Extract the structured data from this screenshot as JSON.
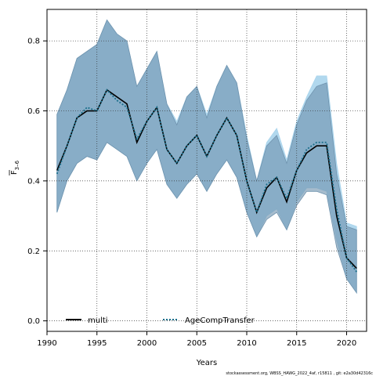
{
  "chart_data": {
    "type": "area",
    "xlabel": "Years",
    "ylabel_main": "F",
    "ylabel_sub": "3–6",
    "xlim": [
      1990,
      2022
    ],
    "ylim": [
      -0.03,
      0.89
    ],
    "xticks": [
      1990,
      1995,
      2000,
      2005,
      2010,
      2015,
      2020
    ],
    "yticks": [
      0.0,
      0.2,
      0.4,
      0.6,
      0.8
    ],
    "ytick_labels": [
      "0.0",
      "0.2",
      "0.4",
      "0.6",
      "0.8"
    ],
    "grid": true,
    "legend_placement": "bottom-left",
    "x": [
      1991,
      1992,
      1993,
      1994,
      1995,
      1996,
      1997,
      1998,
      1999,
      2000,
      2001,
      2002,
      2003,
      2004,
      2005,
      2006,
      2007,
      2008,
      2009,
      2010,
      2011,
      2012,
      2013,
      2014,
      2015,
      2016,
      2017,
      2018,
      2019,
      2020,
      2021
    ],
    "series": [
      {
        "name": "multi",
        "line_color": "#000000",
        "line_style": "solid",
        "band_color": "#6f93ae",
        "values": [
          0.43,
          0.5,
          0.58,
          0.6,
          0.6,
          0.66,
          0.64,
          0.62,
          0.51,
          0.57,
          0.61,
          0.49,
          0.45,
          0.5,
          0.53,
          0.47,
          0.53,
          0.58,
          0.53,
          0.4,
          0.31,
          0.38,
          0.41,
          0.34,
          0.43,
          0.48,
          0.5,
          0.5,
          0.3,
          0.18,
          0.15
        ],
        "lower": [
          0.31,
          0.4,
          0.45,
          0.47,
          0.46,
          0.51,
          0.49,
          0.47,
          0.4,
          0.45,
          0.49,
          0.39,
          0.35,
          0.39,
          0.42,
          0.37,
          0.42,
          0.46,
          0.41,
          0.31,
          0.24,
          0.29,
          0.31,
          0.26,
          0.33,
          0.37,
          0.37,
          0.36,
          0.21,
          0.12,
          0.08
        ],
        "upper": [
          0.59,
          0.66,
          0.75,
          0.77,
          0.79,
          0.86,
          0.82,
          0.8,
          0.67,
          0.72,
          0.77,
          0.62,
          0.56,
          0.64,
          0.67,
          0.58,
          0.67,
          0.73,
          0.68,
          0.52,
          0.4,
          0.5,
          0.53,
          0.45,
          0.56,
          0.63,
          0.67,
          0.68,
          0.42,
          0.27,
          0.26
        ]
      },
      {
        "name": "AgeCompTransfer",
        "line_color": "#1a6e8a",
        "line_style": "dotted",
        "band_color": "#a9d4ec",
        "values": [
          0.42,
          0.5,
          0.58,
          0.61,
          0.6,
          0.66,
          0.63,
          0.61,
          0.52,
          0.57,
          0.61,
          0.49,
          0.45,
          0.5,
          0.53,
          0.47,
          0.53,
          0.58,
          0.53,
          0.4,
          0.31,
          0.39,
          0.41,
          0.35,
          0.43,
          0.49,
          0.51,
          0.51,
          0.32,
          0.18,
          0.14
        ],
        "lower": [
          0.31,
          0.4,
          0.45,
          0.47,
          0.46,
          0.51,
          0.49,
          0.47,
          0.4,
          0.45,
          0.49,
          0.39,
          0.35,
          0.39,
          0.42,
          0.37,
          0.42,
          0.46,
          0.41,
          0.31,
          0.24,
          0.3,
          0.32,
          0.26,
          0.34,
          0.38,
          0.38,
          0.37,
          0.23,
          0.12,
          0.08
        ],
        "upper": [
          0.59,
          0.66,
          0.75,
          0.77,
          0.79,
          0.86,
          0.82,
          0.8,
          0.67,
          0.72,
          0.77,
          0.62,
          0.57,
          0.64,
          0.67,
          0.59,
          0.67,
          0.73,
          0.68,
          0.53,
          0.4,
          0.51,
          0.55,
          0.46,
          0.57,
          0.64,
          0.7,
          0.7,
          0.45,
          0.28,
          0.27
        ]
      }
    ]
  },
  "footer": "stockassessment.org, WBSS_HAWG_2022_4af, r15811 , git: e2a30d42316c"
}
